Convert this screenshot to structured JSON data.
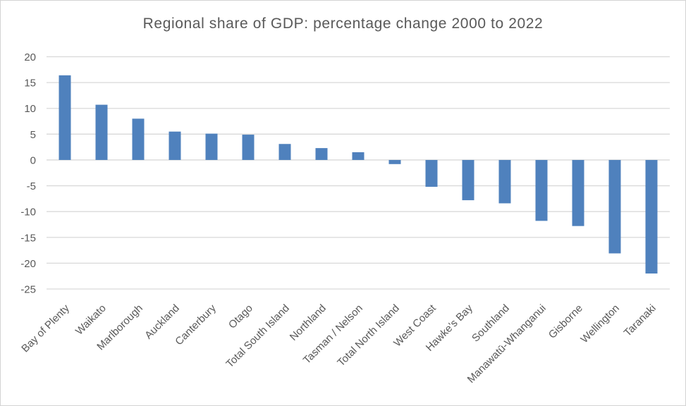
{
  "chart_data": {
    "type": "bar",
    "title": "Regional share of GDP: percentage change 2000 to 2022",
    "categories": [
      "Bay of Plenty",
      "Waikato",
      "Marlborough",
      "Auckland",
      "Canterbury",
      "Otago",
      "Total South Island",
      "Northland",
      "Tasman / Nelson",
      "Total North Island",
      "West Coast",
      "Hawke's Bay",
      "Southland",
      "Manawatū-Whanganui",
      "Gisborne",
      "Wellington",
      "Taranaki"
    ],
    "values": [
      16.4,
      10.7,
      8.0,
      5.5,
      5.1,
      4.9,
      3.1,
      2.3,
      1.5,
      -0.8,
      -5.2,
      -7.8,
      -8.4,
      -11.8,
      -12.8,
      -18.1,
      -22.0
    ],
    "xlabel": "",
    "ylabel": "",
    "ylim": [
      -25,
      20
    ],
    "yticks": [
      20,
      15,
      10,
      5,
      0,
      -5,
      -10,
      -15,
      -20,
      -25
    ],
    "grid": true,
    "legend": false,
    "x_label_rotation_deg": -45
  },
  "colors": {
    "bar": "#4F81BD",
    "gridline": "#D9D9D9",
    "axis_text": "#595959",
    "title_text": "#595959",
    "background": "#FFFFFF",
    "frame_border": "#D3D3D3"
  }
}
